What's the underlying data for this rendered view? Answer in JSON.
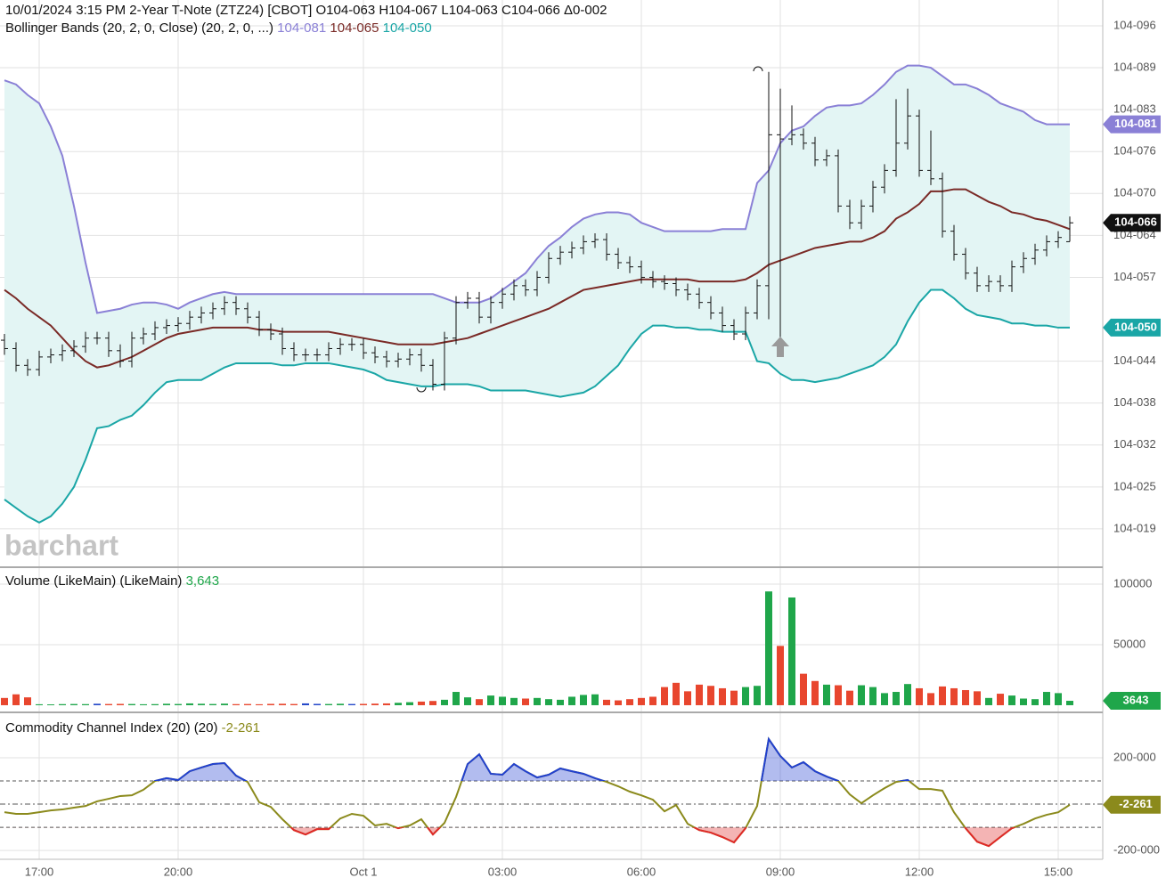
{
  "watermark": "barchart",
  "chart_data": [
    {
      "type": "ohlc",
      "title": "10/01/2024 3:15 PM 2-Year T-Note (ZTZ24) [CBOT] O104-063 H104-067 L104-063 C104-066 Δ0-002",
      "categories": [
        null,
        null,
        null,
        "17:00",
        null,
        null,
        null,
        null,
        null,
        null,
        null,
        null,
        null,
        null,
        null,
        "20:00",
        null,
        null,
        null,
        null,
        null,
        null,
        null,
        null,
        null,
        null,
        null,
        null,
        null,
        null,
        null,
        "Oct 1",
        null,
        null,
        null,
        null,
        null,
        null,
        null,
        null,
        null,
        null,
        null,
        "03:00",
        null,
        null,
        null,
        null,
        null,
        null,
        null,
        null,
        null,
        null,
        null,
        "06:00",
        null,
        null,
        null,
        null,
        null,
        null,
        null,
        null,
        null,
        null,
        null,
        "09:00",
        null,
        null,
        null,
        null,
        null,
        null,
        null,
        null,
        null,
        null,
        null,
        "12:00",
        null,
        null,
        null,
        null,
        null,
        null,
        null,
        null,
        null,
        null,
        null,
        "15:00",
        null
      ],
      "open": [
        104.15,
        104.146,
        104.138,
        104.136,
        104.142,
        104.143,
        104.145,
        104.147,
        104.151,
        104.151,
        104.145,
        104.14,
        104.151,
        104.153,
        104.156,
        104.157,
        104.158,
        104.161,
        104.163,
        104.165,
        104.168,
        104.165,
        104.161,
        104.155,
        104.153,
        104.146,
        104.143,
        104.143,
        104.143,
        104.146,
        104.148,
        104.148,
        104.144,
        104.142,
        104.14,
        104.141,
        104.143,
        104.138,
        104.129,
        104.151,
        104.168,
        104.17,
        104.161,
        104.168,
        104.172,
        104.176,
        104.174,
        104.18,
        104.189,
        104.192,
        104.194,
        104.197,
        104.198,
        104.191,
        104.187,
        104.185,
        104.18,
        104.178,
        104.177,
        104.174,
        104.172,
        104.168,
        104.163,
        104.157,
        104.153,
        104.163,
        104.176,
        104.248,
        104.246,
        104.248,
        104.244,
        104.236,
        104.238,
        104.214,
        104.206,
        104.214,
        104.223,
        104.231,
        104.244,
        104.257,
        104.231,
        104.227,
        104.202,
        104.191,
        104.182,
        104.176,
        104.178,
        104.176,
        104.185,
        104.189,
        104.193,
        104.197,
        104.197
      ],
      "high": [
        104.153,
        104.149,
        104.141,
        104.145,
        104.146,
        104.148,
        104.15,
        104.154,
        104.154,
        104.154,
        104.148,
        104.154,
        104.156,
        104.159,
        104.16,
        104.161,
        104.164,
        104.166,
        104.168,
        104.171,
        104.171,
        104.168,
        104.164,
        104.158,
        104.156,
        104.149,
        104.146,
        104.146,
        104.149,
        104.151,
        104.151,
        104.151,
        104.147,
        104.145,
        104.144,
        104.146,
        104.146,
        104.141,
        104.154,
        104.171,
        104.173,
        104.173,
        104.171,
        104.175,
        104.179,
        104.179,
        104.183,
        104.192,
        104.195,
        104.197,
        104.2,
        104.201,
        104.201,
        104.194,
        104.19,
        104.188,
        104.183,
        104.181,
        104.18,
        104.177,
        104.175,
        104.171,
        104.166,
        104.16,
        104.166,
        104.179,
        104.278,
        104.27,
        104.262,
        104.251,
        104.247,
        104.241,
        104.241,
        104.217,
        104.217,
        104.226,
        104.234,
        104.265,
        104.27,
        104.26,
        104.25,
        104.23,
        104.205,
        104.194,
        104.185,
        104.181,
        104.181,
        104.188,
        104.192,
        104.196,
        104.2,
        104.202,
        104.209
      ],
      "low": [
        104.143,
        104.135,
        104.133,
        104.133,
        104.139,
        104.14,
        104.142,
        104.144,
        104.148,
        104.142,
        104.137,
        104.137,
        104.148,
        104.15,
        104.153,
        104.154,
        104.155,
        104.158,
        104.16,
        104.162,
        104.162,
        104.158,
        104.152,
        104.15,
        104.143,
        104.14,
        104.14,
        104.14,
        104.14,
        104.143,
        104.145,
        104.141,
        104.139,
        104.137,
        104.137,
        104.138,
        104.135,
        104.126,
        104.126,
        104.148,
        104.165,
        104.158,
        104.158,
        104.165,
        104.169,
        104.171,
        104.171,
        104.177,
        104.186,
        104.189,
        104.191,
        104.194,
        104.188,
        104.184,
        104.182,
        104.177,
        104.175,
        104.174,
        104.171,
        104.169,
        104.165,
        104.16,
        104.154,
        104.15,
        104.15,
        104.16,
        104.16,
        104.15,
        104.243,
        104.241,
        104.233,
        104.233,
        104.211,
        104.203,
        104.203,
        104.211,
        104.22,
        104.228,
        104.241,
        104.228,
        104.224,
        104.199,
        104.188,
        104.179,
        104.173,
        104.173,
        104.173,
        104.173,
        104.182,
        104.186,
        104.19,
        104.194,
        104.197
      ],
      "close": [
        104.146,
        104.138,
        104.136,
        104.142,
        104.143,
        104.145,
        104.147,
        104.151,
        104.151,
        104.145,
        104.14,
        104.151,
        104.153,
        104.156,
        104.157,
        104.158,
        104.161,
        104.163,
        104.165,
        104.168,
        104.165,
        104.161,
        104.155,
        104.153,
        104.146,
        104.143,
        104.143,
        104.143,
        104.146,
        104.148,
        104.148,
        104.144,
        104.142,
        104.14,
        104.141,
        104.143,
        104.138,
        104.129,
        104.151,
        104.168,
        104.17,
        104.161,
        104.168,
        104.172,
        104.176,
        104.174,
        104.18,
        104.189,
        104.192,
        104.194,
        104.197,
        104.198,
        104.191,
        104.187,
        104.185,
        104.18,
        104.178,
        104.177,
        104.174,
        104.172,
        104.168,
        104.163,
        104.157,
        104.153,
        104.163,
        104.176,
        104.248,
        104.246,
        104.248,
        104.244,
        104.236,
        104.238,
        104.214,
        104.206,
        104.214,
        104.223,
        104.231,
        104.244,
        104.257,
        104.231,
        104.227,
        104.202,
        104.191,
        104.182,
        104.176,
        104.178,
        104.176,
        104.185,
        104.189,
        104.193,
        104.197,
        104.199,
        104.206
      ],
      "bar_color": "#111111",
      "last_label": "104-066",
      "ylim": [
        104.0417,
        104.3123
      ],
      "yticks": [
        {
          "value": 104.3,
          "label": "104-096"
        },
        {
          "value": 104.28,
          "label": "104-089"
        },
        {
          "value": 104.26,
          "label": "104-083"
        },
        {
          "value": 104.24,
          "label": "104-076"
        },
        {
          "value": 104.22,
          "label": "104-070"
        },
        {
          "value": 104.2,
          "label": "104-064"
        },
        {
          "value": 104.18,
          "label": "104-057"
        },
        {
          "value": 104.14,
          "label": "104-044"
        },
        {
          "value": 104.12,
          "label": "104-038"
        },
        {
          "value": 104.1,
          "label": "104-032"
        },
        {
          "value": 104.08,
          "label": "104-025"
        },
        {
          "value": 104.06,
          "label": "104-019"
        }
      ],
      "grid": true,
      "bands": {
        "title": "Bollinger Bands (20, 2, 0, Close)  (20, 2, 0, ...)",
        "fill": "#e3f5f4",
        "series": [
          {
            "color": "#8a80d6",
            "last_label": "104-081",
            "values": [
              104.274,
              104.272,
              104.267,
              104.263,
              104.252,
              104.238,
              104.214,
              104.187,
              104.163,
              104.164,
              104.165,
              104.167,
              104.168,
              104.168,
              104.167,
              104.165,
              104.168,
              104.17,
              104.172,
              104.173,
              104.172,
              104.172,
              104.172,
              104.172,
              104.172,
              104.172,
              104.172,
              104.172,
              104.172,
              104.172,
              104.172,
              104.172,
              104.172,
              104.172,
              104.172,
              104.172,
              104.172,
              104.172,
              104.17,
              104.168,
              104.168,
              104.168,
              104.17,
              104.174,
              104.178,
              104.182,
              104.189,
              104.195,
              104.199,
              104.204,
              104.208,
              104.21,
              104.211,
              104.211,
              104.21,
              104.206,
              104.204,
              104.202,
              104.202,
              104.202,
              104.202,
              104.202,
              104.203,
              104.203,
              104.203,
              104.225,
              104.231,
              104.244,
              104.25,
              104.252,
              104.257,
              104.261,
              104.262,
              104.262,
              104.263,
              104.267,
              104.272,
              104.278,
              104.281,
              104.281,
              104.28,
              104.276,
              104.272,
              104.272,
              104.27,
              104.267,
              104.263,
              104.261,
              104.259,
              104.255,
              104.253,
              104.253,
              104.253
            ]
          },
          {
            "color": "#7a2a26",
            "last_label": "104-065",
            "values": [
              104.174,
              104.17,
              104.165,
              104.161,
              104.157,
              104.151,
              104.145,
              104.14,
              104.137,
              104.138,
              104.14,
              104.142,
              104.145,
              104.148,
              104.151,
              104.153,
              104.154,
              104.155,
              104.156,
              104.156,
              104.156,
              104.156,
              104.155,
              104.155,
              104.154,
              104.154,
              104.154,
              104.154,
              104.154,
              104.153,
              104.152,
              104.151,
              104.15,
              104.149,
              104.148,
              104.148,
              104.148,
              104.148,
              104.149,
              104.15,
              104.151,
              104.153,
              104.155,
              104.157,
              104.159,
              104.161,
              104.163,
              104.165,
              104.168,
              104.171,
              104.174,
              104.175,
              104.176,
              104.177,
              104.178,
              104.179,
              104.179,
              104.179,
              104.179,
              104.179,
              104.178,
              104.178,
              104.178,
              104.178,
              104.179,
              104.182,
              104.186,
              104.188,
              104.19,
              104.192,
              104.194,
              104.195,
              104.196,
              104.197,
              104.197,
              104.199,
              104.202,
              104.208,
              104.211,
              104.215,
              104.221,
              104.221,
              104.222,
              104.222,
              104.219,
              104.216,
              104.214,
              104.211,
              104.21,
              104.208,
              104.207,
              104.205,
              104.203
            ]
          },
          {
            "color": "#1aa6a6",
            "last_label": "104-050",
            "values": [
              104.074,
              104.07,
              104.066,
              104.063,
              104.066,
              104.072,
              104.08,
              104.093,
              104.108,
              104.109,
              104.112,
              104.114,
              104.119,
              104.125,
              104.13,
              104.131,
              104.131,
              104.131,
              104.134,
              104.137,
              104.139,
              104.139,
              104.139,
              104.139,
              104.138,
              104.138,
              104.139,
              104.139,
              104.139,
              104.138,
              104.137,
              104.136,
              104.134,
              104.131,
              104.13,
              104.129,
              104.128,
              104.128,
              104.129,
              104.129,
              104.129,
              104.128,
              104.126,
              104.126,
              104.126,
              104.126,
              104.125,
              104.124,
              104.123,
              104.124,
              104.125,
              104.128,
              104.133,
              104.138,
              104.146,
              104.153,
              104.157,
              104.157,
              104.156,
              104.156,
              104.155,
              104.155,
              104.154,
              104.154,
              104.154,
              104.14,
              104.139,
              104.134,
              104.131,
              104.131,
              104.13,
              104.131,
              104.132,
              104.134,
              104.136,
              104.138,
              104.142,
              104.148,
              104.159,
              104.168,
              104.174,
              104.174,
              104.17,
              104.165,
              104.162,
              104.161,
              104.16,
              104.158,
              104.158,
              104.157,
              104.157,
              104.156,
              104.156
            ]
          }
        ]
      }
    },
    {
      "type": "bar",
      "title": "Volume (LikeMain)  (LikeMain)",
      "last_label": "3,643",
      "label_color": "#1fa64a",
      "up_color": "#1fa64a",
      "down_color": "#e8462e",
      "flat_color": "#2347c8",
      "values": [
        6000,
        9000,
        6500,
        800,
        700,
        900,
        1000,
        900,
        1200,
        1000,
        1100,
        1000,
        800,
        900,
        1200,
        1000,
        1500,
        1200,
        1000,
        1300,
        900,
        1000,
        800,
        1100,
        1200,
        1000,
        1500,
        1100,
        1000,
        1200,
        1000,
        1100,
        1300,
        1500,
        2000,
        2500,
        3000,
        3500,
        4500,
        11000,
        6500,
        5000,
        8000,
        7000,
        6000,
        5500,
        6000,
        5000,
        4500,
        7000,
        8500,
        9000,
        4500,
        4000,
        5000,
        6000,
        7000,
        15000,
        18500,
        11500,
        17000,
        16000,
        14000,
        12000,
        15000,
        16000,
        94000,
        49000,
        89000,
        26000,
        20000,
        17000,
        16500,
        12000,
        16500,
        15000,
        10000,
        11000,
        17500,
        14000,
        10000,
        15500,
        14000,
        12500,
        11500,
        6000,
        9500,
        8000,
        5500,
        5000,
        11000,
        10000,
        3643
      ],
      "ylim": [
        -5900,
        114000
      ],
      "yticks": [
        100000,
        50000
      ],
      "grid": true
    },
    {
      "type": "line",
      "title": "Commodity Channel Index (20)  (20)",
      "last_label": "-2-261",
      "color": "#8b8a1c",
      "above_color": "#2140d0",
      "below_color": "#e02828",
      "values": [
        -35,
        -42,
        -42,
        -35,
        -27,
        -23,
        -15,
        -8,
        12,
        23,
        35,
        38,
        62,
        100,
        112,
        104,
        142,
        158,
        173,
        177,
        123,
        96,
        8,
        -12,
        -65,
        -112,
        -131,
        -108,
        -108,
        -62,
        -42,
        -50,
        -92,
        -85,
        -104,
        -92,
        -65,
        -131,
        -81,
        31,
        173,
        215,
        131,
        127,
        173,
        142,
        115,
        127,
        154,
        142,
        131,
        112,
        96,
        77,
        54,
        38,
        19,
        -31,
        -4,
        -85,
        -112,
        -123,
        -142,
        -165,
        -104,
        -8,
        281,
        208,
        158,
        181,
        142,
        119,
        100,
        42,
        4,
        38,
        69,
        96,
        104,
        65,
        65,
        58,
        -35,
        -104,
        -162,
        -181,
        -142,
        -104,
        -85,
        -62,
        -46,
        -35,
        -2.816
      ],
      "levels": [
        100,
        0,
        -100
      ],
      "ylim": [
        -238,
        396
      ],
      "yticks": [
        {
          "value": 200,
          "label": "200-000"
        },
        {
          "value": -200,
          "label": "-200-000"
        }
      ],
      "grid": true
    }
  ]
}
